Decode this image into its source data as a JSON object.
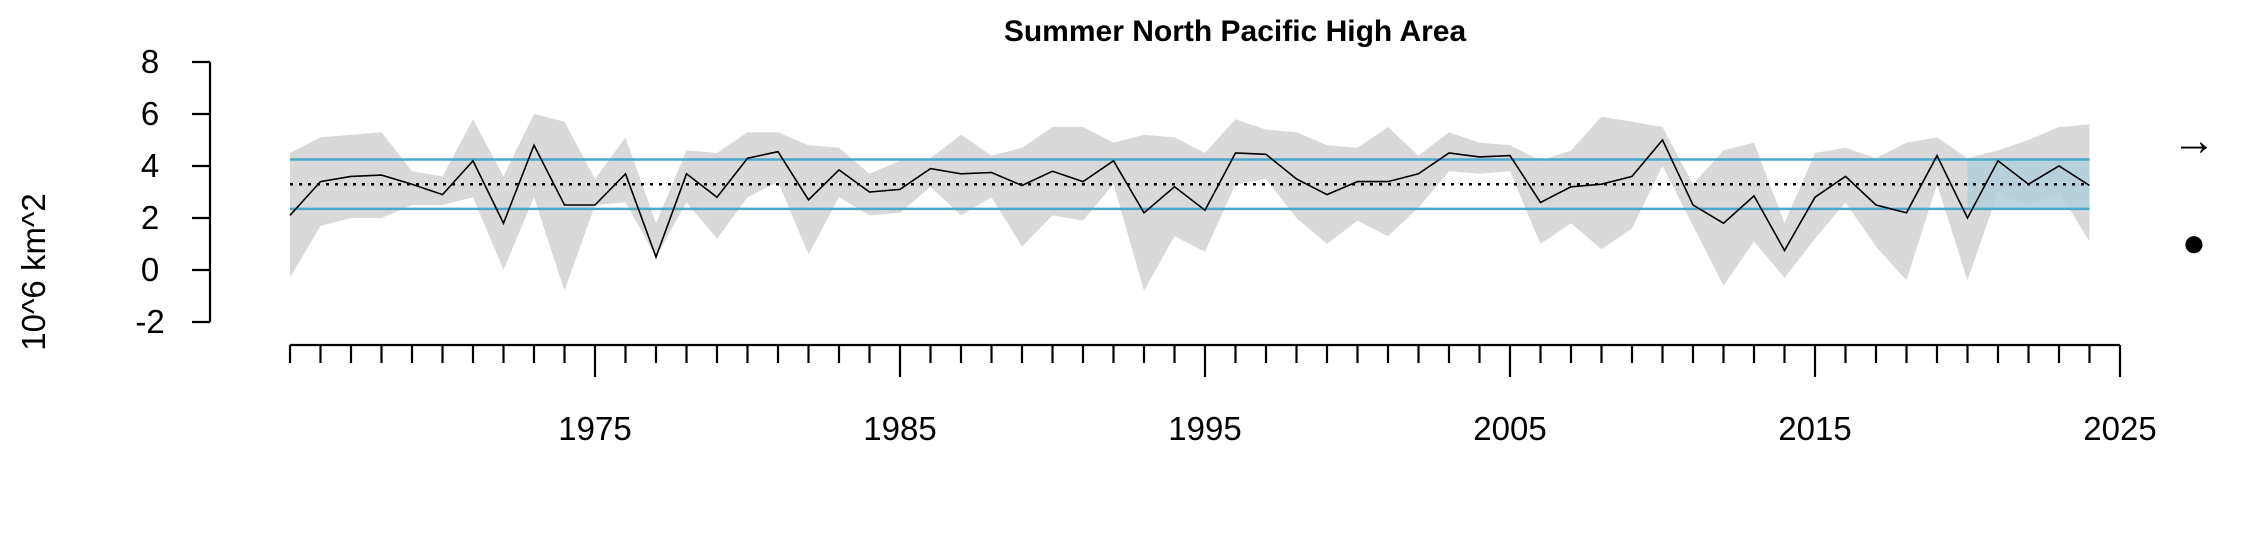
{
  "chart_data": {
    "type": "line",
    "title": "Summer North Pacific High Area",
    "xlabel": "",
    "ylabel": "10^6 km^2",
    "xlim": [
      1965,
      2025
    ],
    "ylim": [
      -2,
      8
    ],
    "x_tick_labels": [
      1975,
      1985,
      1995,
      2005,
      2015,
      2025
    ],
    "y_ticks": [
      -2,
      0,
      2,
      4,
      6,
      8
    ],
    "x_minor_ticks_every": 1,
    "mean": 3.3,
    "upper_sd": 4.25,
    "lower_sd": 2.35,
    "recent_window_start": 2020,
    "recent_window_end": 2024,
    "trend_symbol": "→",
    "mean_symbol": "●",
    "colors": {
      "line": "#000000",
      "uncertainty_band": "#d9d9d9",
      "sd_lines": "#4aa8c8",
      "recent_window": "#b0cfdc",
      "recent_highlight": "#4aa8c8",
      "mean_line": "#000000"
    },
    "series": [
      {
        "x": [
          1965,
          1966,
          1967,
          1968,
          1969,
          1970,
          1971,
          1972,
          1973,
          1974,
          1975,
          1976,
          1977,
          1978,
          1979,
          1980,
          1981,
          1982,
          1983,
          1984,
          1985,
          1986,
          1987,
          1988,
          1989,
          1990,
          1991,
          1992,
          1993,
          1994,
          1995,
          1996,
          1997,
          1998,
          1999,
          2000,
          2001,
          2002,
          2003,
          2004,
          2005,
          2006,
          2007,
          2008,
          2009,
          2010,
          2011,
          2012,
          2013,
          2014,
          2015,
          2016,
          2017,
          2018,
          2019,
          2020,
          2021,
          2022,
          2023,
          2024
        ],
        "values": [
          2.1,
          3.4,
          3.6,
          3.65,
          3.3,
          2.9,
          4.2,
          1.8,
          4.8,
          2.5,
          2.5,
          3.7,
          0.5,
          3.7,
          2.8,
          4.3,
          4.55,
          2.7,
          3.85,
          3.0,
          3.1,
          3.9,
          3.7,
          3.75,
          3.25,
          3.8,
          3.4,
          4.2,
          2.2,
          3.2,
          2.3,
          4.5,
          4.45,
          3.5,
          2.9,
          3.4,
          3.4,
          3.7,
          4.5,
          4.35,
          4.4,
          2.6,
          3.2,
          3.3,
          3.6,
          5.0,
          2.5,
          1.8,
          2.85,
          0.75,
          2.8,
          3.6,
          2.5,
          2.2,
          4.4,
          2.0,
          4.2,
          3.3,
          4.0,
          3.25
        ],
        "lower": [
          -0.3,
          1.7,
          2.0,
          2.0,
          2.5,
          2.5,
          2.8,
          0.0,
          2.8,
          -0.8,
          2.5,
          2.6,
          0.5,
          2.6,
          1.2,
          2.8,
          3.4,
          0.6,
          2.8,
          2.1,
          2.2,
          3.2,
          2.1,
          2.8,
          0.9,
          2.1,
          1.9,
          3.3,
          -0.8,
          1.3,
          0.7,
          3.3,
          3.5,
          2.0,
          1.0,
          1.9,
          1.3,
          2.4,
          3.8,
          3.7,
          3.8,
          1.0,
          1.8,
          0.8,
          1.6,
          4.0,
          1.7,
          -0.6,
          1.1,
          -0.3,
          1.2,
          2.6,
          0.9,
          -0.4,
          3.3,
          -0.4,
          3.0,
          2.5,
          3.0,
          1.1
        ],
        "upper": [
          4.5,
          5.1,
          5.2,
          5.3,
          3.8,
          3.6,
          5.8,
          3.6,
          6.0,
          5.7,
          3.5,
          5.1,
          1.8,
          4.6,
          4.5,
          5.3,
          5.3,
          4.8,
          4.7,
          3.7,
          4.2,
          4.3,
          5.2,
          4.4,
          4.7,
          5.5,
          5.5,
          4.9,
          5.2,
          5.1,
          4.5,
          5.8,
          5.4,
          5.3,
          4.8,
          4.7,
          5.5,
          4.4,
          5.3,
          4.9,
          4.8,
          4.2,
          4.6,
          5.9,
          5.7,
          5.5,
          3.3,
          4.6,
          4.9,
          1.8,
          4.5,
          4.7,
          4.3,
          4.9,
          5.1,
          4.3,
          4.6,
          5.0,
          5.5,
          5.6
        ]
      }
    ]
  }
}
